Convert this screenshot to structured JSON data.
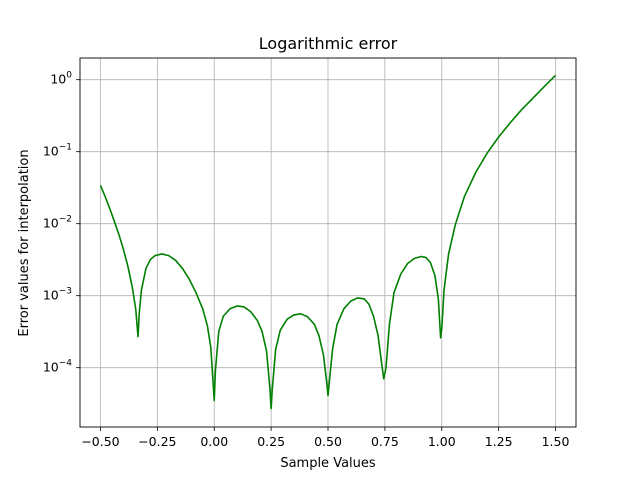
{
  "chart_data": {
    "type": "line",
    "title": "Logarithmic error",
    "xlabel": "Sample Values",
    "ylabel": "Error values for interpolation",
    "xlim": [
      -0.59,
      1.59
    ],
    "ylim": [
      1.5e-05,
      2.0
    ],
    "yscale": "log",
    "grid": true,
    "xticks": [
      {
        "value": -0.5,
        "label": "−0.50"
      },
      {
        "value": -0.25,
        "label": "−0.25"
      },
      {
        "value": 0.0,
        "label": "0.00"
      },
      {
        "value": 0.25,
        "label": "0.25"
      },
      {
        "value": 0.5,
        "label": "0.50"
      },
      {
        "value": 0.75,
        "label": "0.75"
      },
      {
        "value": 1.0,
        "label": "1.00"
      },
      {
        "value": 1.25,
        "label": "1.25"
      },
      {
        "value": 1.5,
        "label": "1.50"
      }
    ],
    "yticks": [
      {
        "value": 0.0001,
        "base": "10",
        "exp": "−4"
      },
      {
        "value": 0.001,
        "base": "10",
        "exp": "−3"
      },
      {
        "value": 0.01,
        "base": "10",
        "exp": "−2"
      },
      {
        "value": 0.1,
        "base": "10",
        "exp": "−1"
      },
      {
        "value": 1,
        "base": "10",
        "exp": "0"
      }
    ],
    "series": [
      {
        "color": "#008000",
        "points": [
          [
            -0.5,
            0.034
          ],
          [
            -0.48,
            0.024
          ],
          [
            -0.46,
            0.0165
          ],
          [
            -0.44,
            0.011
          ],
          [
            -0.42,
            0.0072
          ],
          [
            -0.4,
            0.0045
          ],
          [
            -0.38,
            0.0026
          ],
          [
            -0.36,
            0.0013
          ],
          [
            -0.345,
            0.00065
          ],
          [
            -0.335,
            0.00027
          ],
          [
            -0.33,
            0.00055
          ],
          [
            -0.32,
            0.0012
          ],
          [
            -0.3,
            0.0024
          ],
          [
            -0.28,
            0.0032
          ],
          [
            -0.26,
            0.0036
          ],
          [
            -0.23,
            0.0038
          ],
          [
            -0.2,
            0.0036
          ],
          [
            -0.17,
            0.0031
          ],
          [
            -0.14,
            0.0024
          ],
          [
            -0.11,
            0.0017
          ],
          [
            -0.08,
            0.0011
          ],
          [
            -0.05,
            0.00065
          ],
          [
            -0.03,
            0.00038
          ],
          [
            -0.015,
            0.00019
          ],
          [
            0.0,
            3.5e-05
          ],
          [
            0.005,
            9e-05
          ],
          [
            0.02,
            0.00032
          ],
          [
            0.04,
            0.00052
          ],
          [
            0.07,
            0.00066
          ],
          [
            0.1,
            0.00072
          ],
          [
            0.13,
            0.0007
          ],
          [
            0.16,
            0.0006
          ],
          [
            0.19,
            0.00045
          ],
          [
            0.21,
            0.00032
          ],
          [
            0.23,
            0.00017
          ],
          [
            0.245,
            5e-05
          ],
          [
            0.25,
            2.7e-05
          ],
          [
            0.255,
            5e-05
          ],
          [
            0.27,
            0.00018
          ],
          [
            0.29,
            0.00033
          ],
          [
            0.32,
            0.00047
          ],
          [
            0.35,
            0.00054
          ],
          [
            0.38,
            0.00056
          ],
          [
            0.41,
            0.00051
          ],
          [
            0.44,
            0.0004
          ],
          [
            0.46,
            0.00028
          ],
          [
            0.48,
            0.00015
          ],
          [
            0.495,
            6e-05
          ],
          [
            0.5,
            4.1e-05
          ],
          [
            0.505,
            6e-05
          ],
          [
            0.52,
            0.00018
          ],
          [
            0.54,
            0.0004
          ],
          [
            0.57,
            0.00066
          ],
          [
            0.6,
            0.00084
          ],
          [
            0.63,
            0.00093
          ],
          [
            0.66,
            0.0009
          ],
          [
            0.68,
            0.00076
          ],
          [
            0.7,
            0.00052
          ],
          [
            0.72,
            0.00028
          ],
          [
            0.735,
            0.00012
          ],
          [
            0.745,
            7e-05
          ],
          [
            0.755,
            0.0001
          ],
          [
            0.77,
            0.0004
          ],
          [
            0.79,
            0.0011
          ],
          [
            0.82,
            0.002
          ],
          [
            0.85,
            0.0028
          ],
          [
            0.88,
            0.0033
          ],
          [
            0.91,
            0.0035
          ],
          [
            0.93,
            0.0034
          ],
          [
            0.95,
            0.0029
          ],
          [
            0.97,
            0.0019
          ],
          [
            0.985,
            0.0009
          ],
          [
            0.995,
            0.00026
          ],
          [
            1.0,
            0.00035
          ],
          [
            1.01,
            0.0012
          ],
          [
            1.03,
            0.0038
          ],
          [
            1.06,
            0.0098
          ],
          [
            1.1,
            0.024
          ],
          [
            1.15,
            0.052
          ],
          [
            1.2,
            0.096
          ],
          [
            1.25,
            0.16
          ],
          [
            1.3,
            0.25
          ],
          [
            1.35,
            0.38
          ],
          [
            1.4,
            0.55
          ],
          [
            1.45,
            0.8
          ],
          [
            1.5,
            1.15
          ]
        ]
      }
    ]
  }
}
